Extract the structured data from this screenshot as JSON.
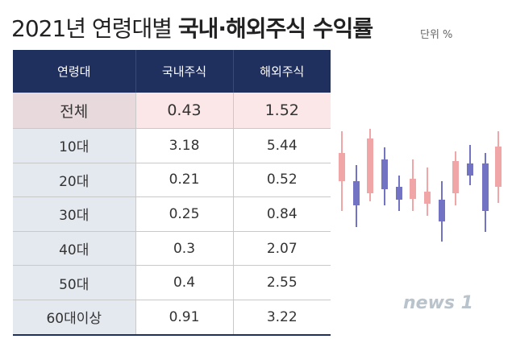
{
  "title": {
    "main": "2021년 연령대별 ",
    "bold": "국내·해외주식 수익률"
  },
  "unit": "단위 %",
  "chart_data": {
    "type": "table",
    "columns": [
      "연령대",
      "국내주식",
      "해외주식"
    ],
    "rows": [
      {
        "age": "전체",
        "domestic": "0.43",
        "overseas": "1.52"
      },
      {
        "age": "10대",
        "domestic": "3.18",
        "overseas": "5.44"
      },
      {
        "age": "20대",
        "domestic": "0.21",
        "overseas": "0.52"
      },
      {
        "age": "30대",
        "domestic": "0.25",
        "overseas": "0.84"
      },
      {
        "age": "40대",
        "domestic": "0.3",
        "overseas": "2.07"
      },
      {
        "age": "50대",
        "domestic": "0.4",
        "overseas": "2.55"
      },
      {
        "age": "60대이상",
        "domestic": "0.91",
        "overseas": "3.22"
      }
    ]
  },
  "decoration": {
    "rise_color": "#f0a6a6",
    "fall_color": "#7373c4"
  },
  "logo": "news 1"
}
